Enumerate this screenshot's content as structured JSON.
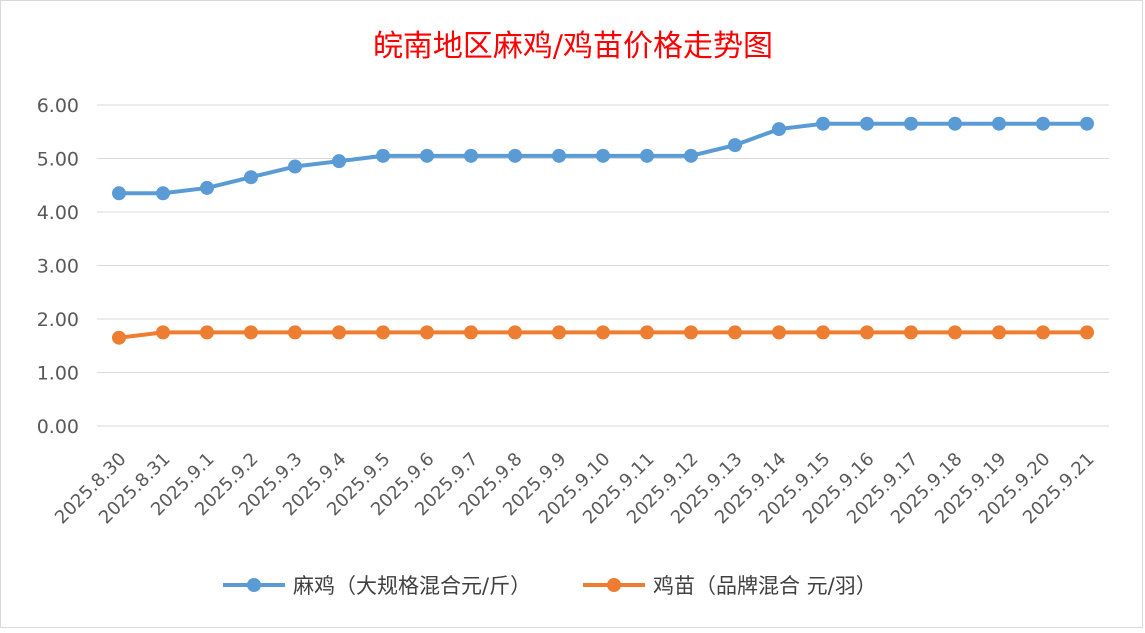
{
  "chart_data": {
    "type": "line",
    "title": "皖南地区麻鸡/鸡苗价格走势图",
    "xlabel": "",
    "ylabel": "",
    "ylim": [
      0,
      6
    ],
    "yticks": [
      "0.00",
      "1.00",
      "2.00",
      "3.00",
      "4.00",
      "5.00",
      "6.00"
    ],
    "categories": [
      "2025.8.30",
      "2025.8.31",
      "2025.9.1",
      "2025.9.2",
      "2025.9.3",
      "2025.9.4",
      "2025.9.5",
      "2025.9.6",
      "2025.9.7",
      "2025.9.8",
      "2025.9.9",
      "2025.9.10",
      "2025.9.11",
      "2025.9.12",
      "2025.9.13",
      "2025.9.14",
      "2025.9.15",
      "2025.9.16",
      "2025.9.17",
      "2025.9.18",
      "2025.9.19",
      "2025.9.20",
      "2025.9.21"
    ],
    "series": [
      {
        "name": "麻鸡（大规格混合元/斤）",
        "color": "#5b9bd5",
        "values": [
          4.35,
          4.35,
          4.45,
          4.65,
          4.85,
          4.95,
          5.05,
          5.05,
          5.05,
          5.05,
          5.05,
          5.05,
          5.05,
          5.05,
          5.25,
          5.55,
          5.65,
          5.65,
          5.65,
          5.65,
          5.65,
          5.65,
          5.65
        ]
      },
      {
        "name": "鸡苗（品牌混合 元/羽）",
        "color": "#ed7d31",
        "values": [
          1.65,
          1.75,
          1.75,
          1.75,
          1.75,
          1.75,
          1.75,
          1.75,
          1.75,
          1.75,
          1.75,
          1.75,
          1.75,
          1.75,
          1.75,
          1.75,
          1.75,
          1.75,
          1.75,
          1.75,
          1.75,
          1.75,
          1.75
        ]
      }
    ],
    "grid": true,
    "legend_position": "bottom"
  }
}
